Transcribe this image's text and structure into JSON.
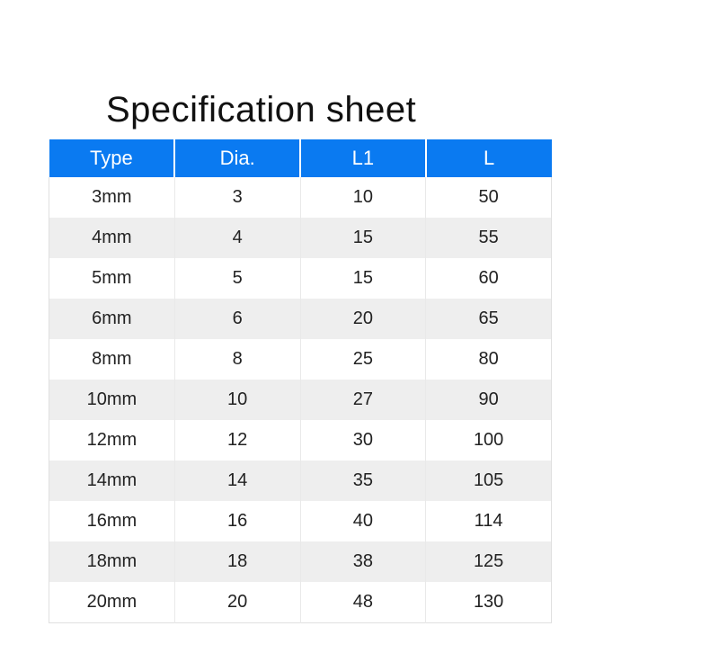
{
  "title": "Specification sheet",
  "table": {
    "type": "table",
    "header_bg": "#0a7af1",
    "header_fg": "#ffffff",
    "row_bg_odd": "#ffffff",
    "row_bg_even": "#eeeeee",
    "border_color": "#e0e0e0",
    "text_color": "#222222",
    "title_fontsize": 40,
    "header_fontsize": 22,
    "cell_fontsize": 20,
    "columns": [
      "Type",
      "Dia.",
      "L1",
      "L"
    ],
    "rows": [
      [
        "3mm",
        "3",
        "10",
        "50"
      ],
      [
        "4mm",
        "4",
        "15",
        "55"
      ],
      [
        "5mm",
        "5",
        "15",
        "60"
      ],
      [
        "6mm",
        "6",
        "20",
        "65"
      ],
      [
        "8mm",
        "8",
        "25",
        "80"
      ],
      [
        "10mm",
        "10",
        "27",
        "90"
      ],
      [
        "12mm",
        "12",
        "30",
        "100"
      ],
      [
        "14mm",
        "14",
        "35",
        "105"
      ],
      [
        "16mm",
        "16",
        "40",
        "114"
      ],
      [
        "18mm",
        "18",
        "38",
        "125"
      ],
      [
        "20mm",
        "20",
        "48",
        "130"
      ]
    ]
  }
}
